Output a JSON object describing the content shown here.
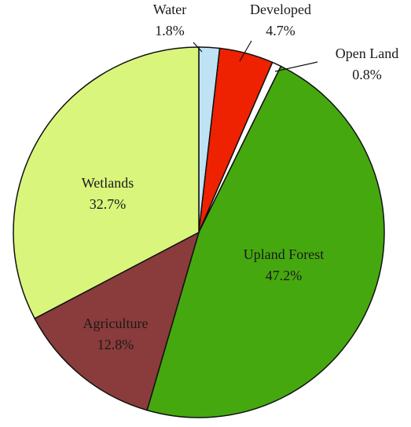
{
  "chart_data": {
    "type": "pie",
    "title": "",
    "start_angle_deg": 0,
    "direction": "clockwise",
    "slices": [
      {
        "label": "Water",
        "value": 1.8,
        "value_label": "1.8%",
        "color": "#bfe3f5"
      },
      {
        "label": "Developed",
        "value": 4.7,
        "value_label": "4.7%",
        "color": "#ee2200"
      },
      {
        "label": "Open Land",
        "value": 0.8,
        "value_label": "0.8%",
        "color": "#ffffff"
      },
      {
        "label": "Upland Forest",
        "value": 47.2,
        "value_label": "47.2%",
        "color": "#46a80f"
      },
      {
        "label": "Agriculture",
        "value": 12.8,
        "value_label": "12.8%",
        "color": "#8a3b3b"
      },
      {
        "label": "Wetlands",
        "value": 32.7,
        "value_label": "32.7%",
        "color": "#d9f57c"
      }
    ]
  }
}
